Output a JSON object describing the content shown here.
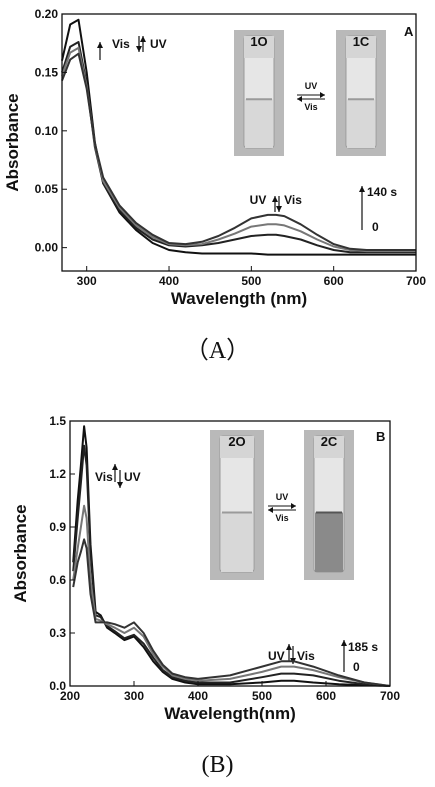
{
  "chart_data": [
    {
      "type": "line",
      "panel_letter": "A",
      "caption": "（A）",
      "xlabel": "Wavelength (nm)",
      "ylabel": "Absorbance",
      "xlim": [
        270,
        700
      ],
      "ylim": [
        -0.02,
        0.2
      ],
      "x_ticks": [
        300,
        400,
        500,
        600,
        700
      ],
      "y_ticks": [
        "0.00",
        "0.05",
        "0.10",
        "0.15",
        "0.20"
      ],
      "grid": false,
      "annotations": {
        "top_left": [
          "Vis",
          "UV"
        ],
        "peak_label": [
          "UV",
          "Vis"
        ],
        "time_top": "140 s",
        "time_bottom": "0",
        "vial_left": "1O",
        "vial_right": "1C",
        "arrow_top": "UV",
        "arrow_bottom": "Vis"
      },
      "x": [
        270,
        280,
        290,
        300,
        310,
        320,
        340,
        360,
        380,
        400,
        420,
        440,
        460,
        480,
        500,
        520,
        530,
        540,
        560,
        580,
        600,
        620,
        640,
        660,
        680,
        700
      ],
      "series": [
        {
          "values": [
            0.16,
            0.191,
            0.195,
            0.15,
            0.09,
            0.055,
            0.03,
            0.015,
            0.004,
            -0.002,
            -0.004,
            -0.005,
            -0.005,
            -0.005,
            -0.005,
            -0.006,
            -0.006,
            -0.006,
            -0.006,
            -0.006,
            -0.006,
            -0.006,
            -0.006,
            -0.006,
            -0.006,
            -0.006
          ]
        },
        {
          "values": [
            0.15,
            0.172,
            0.176,
            0.14,
            0.086,
            0.055,
            0.032,
            0.017,
            0.007,
            0.002,
            0.001,
            0.002,
            0.004,
            0.007,
            0.01,
            0.011,
            0.011,
            0.01,
            0.007,
            0.002,
            -0.002,
            -0.004,
            -0.004,
            -0.004,
            -0.004,
            -0.004
          ]
        },
        {
          "values": [
            0.147,
            0.167,
            0.171,
            0.138,
            0.088,
            0.057,
            0.034,
            0.019,
            0.009,
            0.003,
            0.002,
            0.003,
            0.007,
            0.012,
            0.018,
            0.02,
            0.02,
            0.019,
            0.014,
            0.007,
            0.001,
            -0.002,
            -0.003,
            -0.003,
            -0.003,
            -0.003
          ]
        },
        {
          "values": [
            0.143,
            0.161,
            0.166,
            0.136,
            0.089,
            0.06,
            0.036,
            0.021,
            0.011,
            0.004,
            0.003,
            0.005,
            0.01,
            0.017,
            0.025,
            0.028,
            0.028,
            0.027,
            0.02,
            0.011,
            0.003,
            -0.001,
            -0.002,
            -0.002,
            -0.002,
            -0.002
          ]
        }
      ]
    },
    {
      "type": "line",
      "panel_letter": "B",
      "caption": "(B)",
      "xlabel": "Wavelength(nm)",
      "ylabel": "Absorbance",
      "xlim": [
        200,
        700
      ],
      "ylim": [
        0,
        1.5
      ],
      "x_ticks": [
        200,
        300,
        400,
        500,
        600,
        700
      ],
      "y_ticks": [
        "0.0",
        "0.3",
        "0.6",
        "0.9",
        "1.2",
        "1.5"
      ],
      "grid": false,
      "annotations": {
        "top_left": [
          "Vis",
          "UV"
        ],
        "peak_label": [
          "UV",
          "Vis"
        ],
        "time_top": "185 s",
        "time_bottom": "0",
        "vial_left": "2O",
        "vial_right": "2C",
        "arrow_top": "UV",
        "arrow_bottom": "Vis"
      },
      "x": [
        205,
        212,
        217,
        222,
        226,
        232,
        240,
        248,
        258,
        270,
        285,
        300,
        315,
        330,
        345,
        360,
        380,
        400,
        450,
        500,
        530,
        550,
        580,
        620,
        660,
        700
      ],
      "series": [
        {
          "values": [
            0.7,
            1.05,
            1.25,
            1.47,
            1.35,
            0.8,
            0.42,
            0.4,
            0.33,
            0.3,
            0.26,
            0.28,
            0.22,
            0.14,
            0.08,
            0.04,
            0.02,
            0.01,
            0.01,
            0.02,
            0.03,
            0.03,
            0.02,
            0.01,
            0.005,
            0.0
          ]
        },
        {
          "values": [
            0.65,
            0.95,
            1.15,
            1.36,
            1.25,
            0.75,
            0.4,
            0.39,
            0.34,
            0.31,
            0.27,
            0.29,
            0.24,
            0.16,
            0.09,
            0.05,
            0.03,
            0.02,
            0.02,
            0.05,
            0.07,
            0.07,
            0.06,
            0.03,
            0.01,
            0.0
          ]
        },
        {
          "values": [
            0.6,
            0.78,
            0.9,
            1.02,
            0.95,
            0.6,
            0.38,
            0.37,
            0.35,
            0.33,
            0.3,
            0.33,
            0.28,
            0.18,
            0.11,
            0.06,
            0.04,
            0.03,
            0.04,
            0.08,
            0.11,
            0.11,
            0.09,
            0.05,
            0.02,
            0.0
          ]
        },
        {
          "values": [
            0.56,
            0.7,
            0.76,
            0.83,
            0.78,
            0.52,
            0.36,
            0.36,
            0.36,
            0.35,
            0.33,
            0.36,
            0.3,
            0.2,
            0.12,
            0.07,
            0.05,
            0.04,
            0.06,
            0.11,
            0.14,
            0.14,
            0.11,
            0.06,
            0.02,
            0.0
          ]
        }
      ]
    }
  ]
}
